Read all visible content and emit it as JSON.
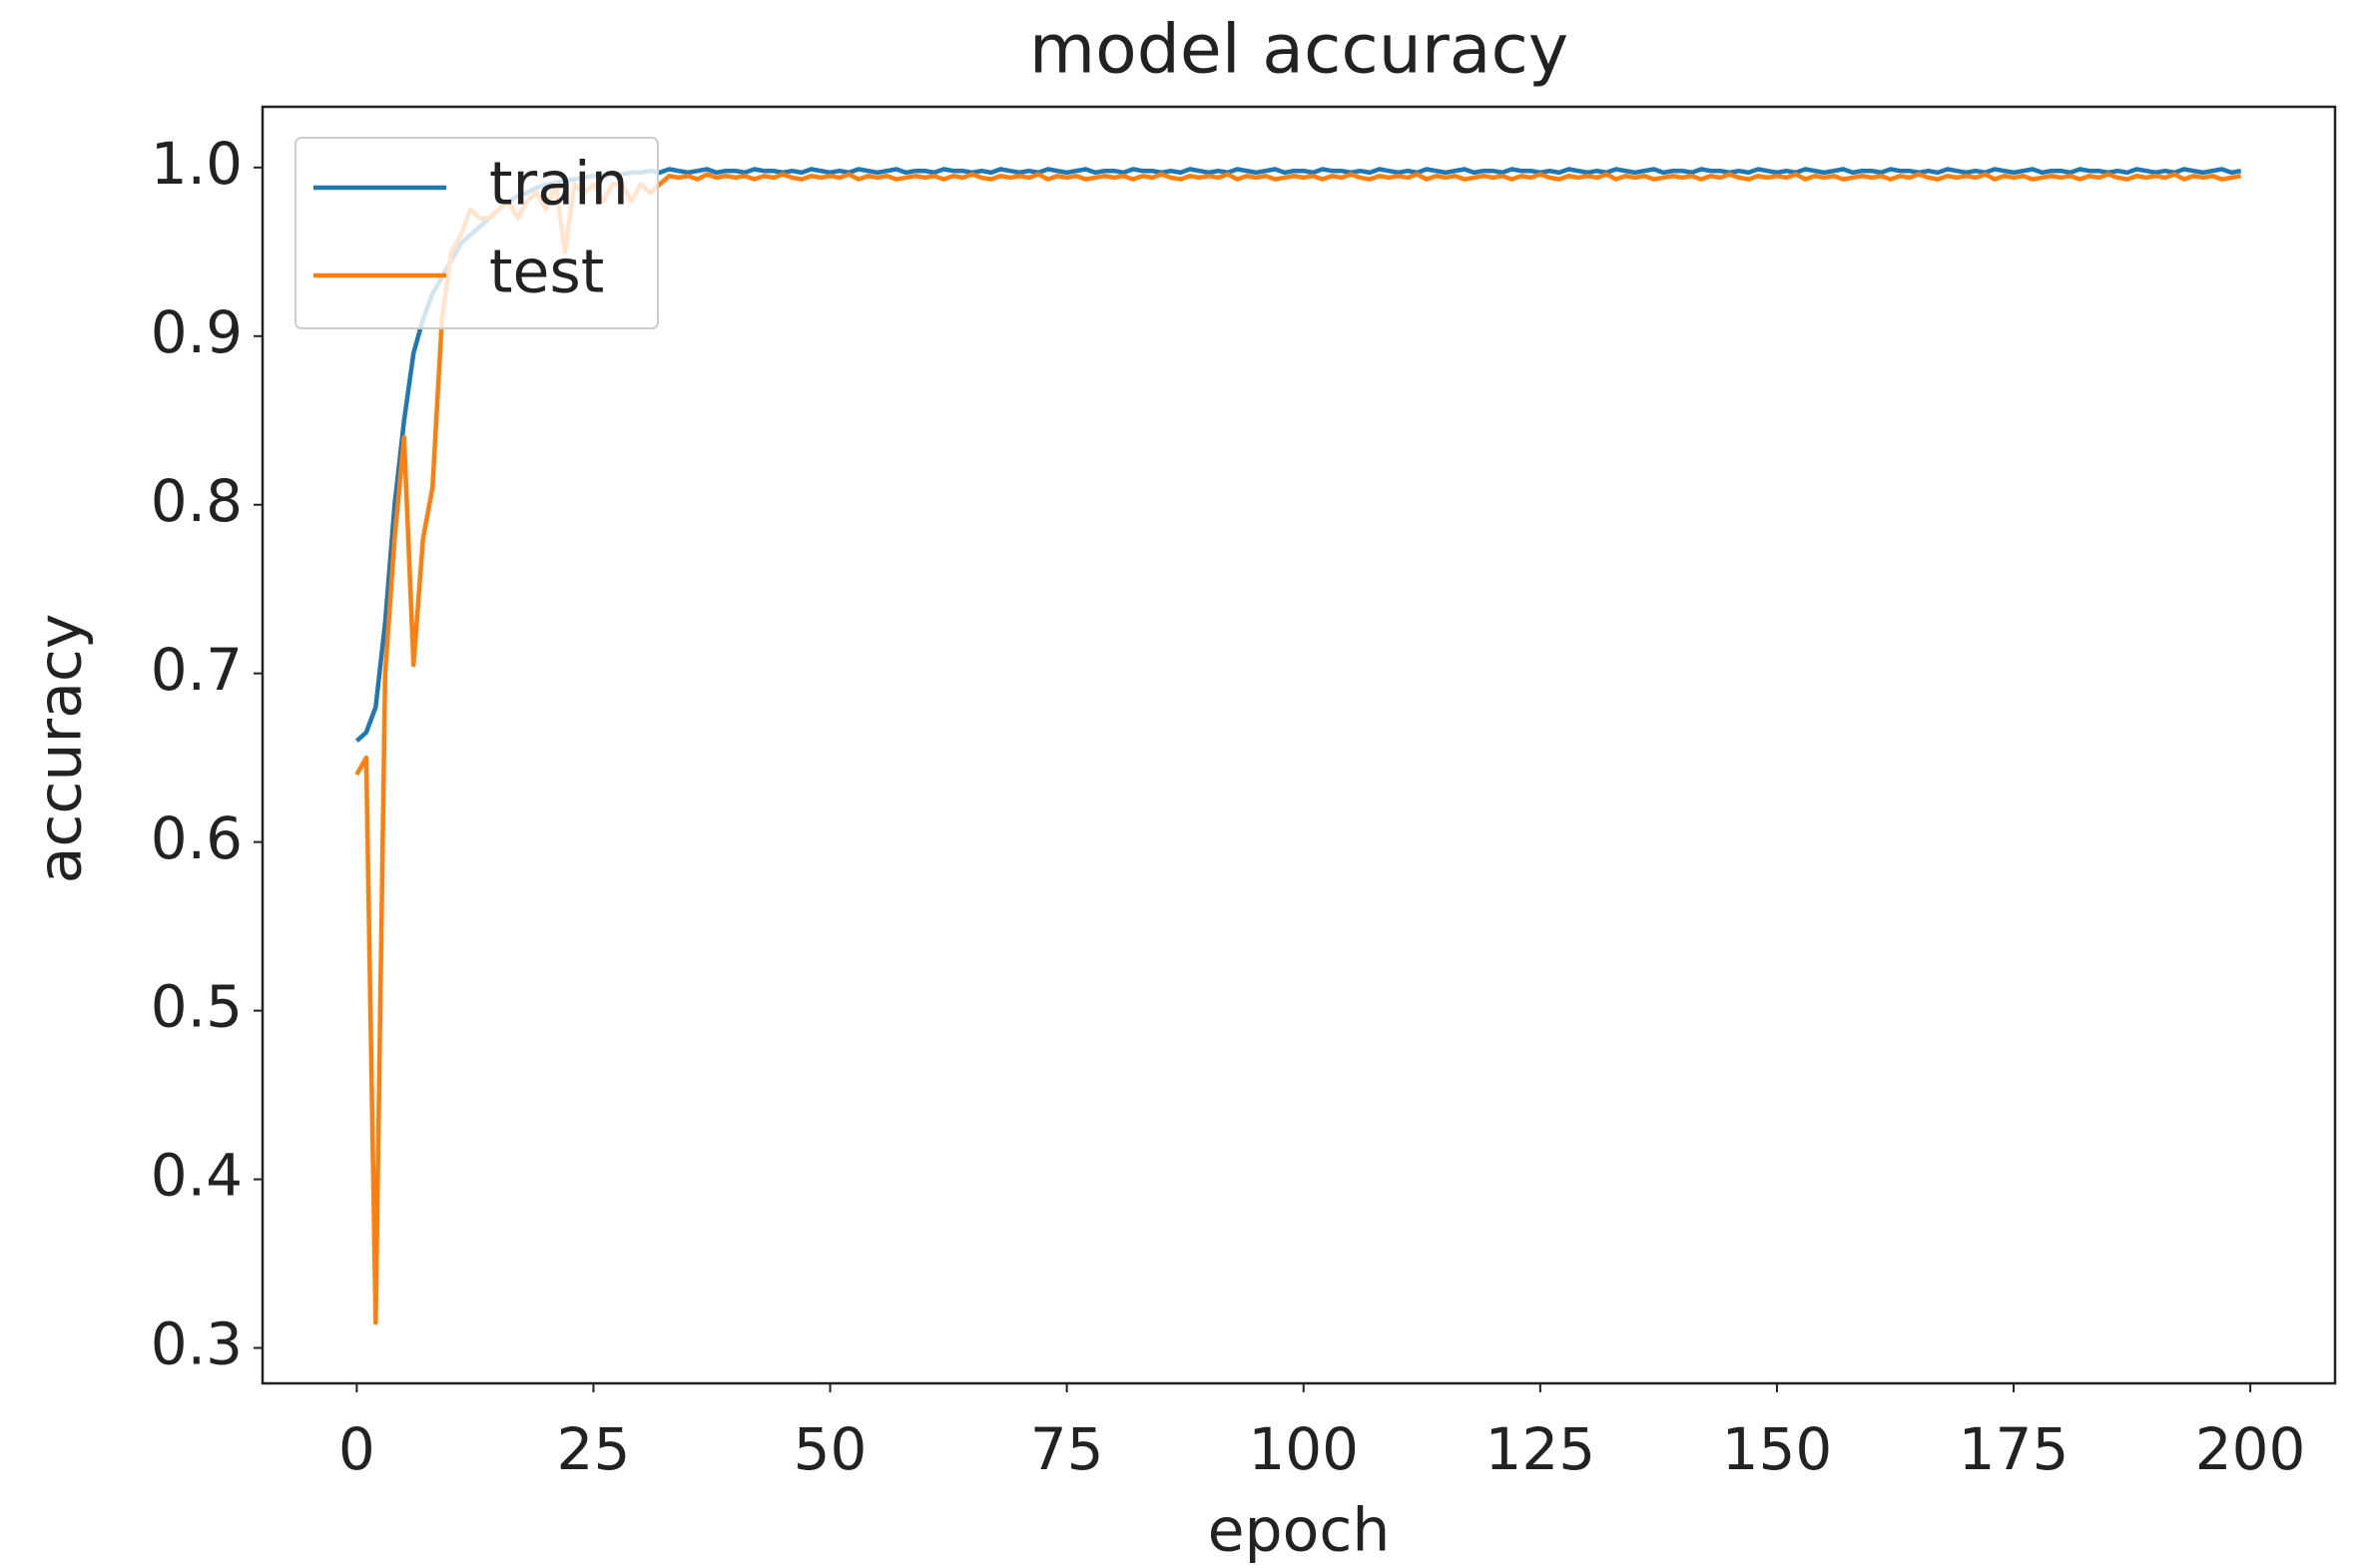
{
  "chart_data": {
    "type": "line",
    "title": "model accuracy",
    "x_label": "epoch",
    "y_label": "accuracy",
    "x": [
      0,
      1,
      2,
      3,
      4,
      5,
      6,
      7,
      8,
      9,
      10,
      11,
      12,
      13,
      14,
      15,
      16,
      17,
      18,
      19,
      20,
      21,
      22,
      23,
      24,
      25,
      26,
      27,
      28,
      29,
      30,
      31,
      32,
      33,
      34,
      35,
      36,
      37,
      38,
      39,
      40,
      41,
      42,
      43,
      44,
      45,
      46,
      47,
      48,
      49,
      50,
      51,
      52,
      53,
      54,
      55,
      56,
      57,
      58,
      59,
      60,
      61,
      62,
      63,
      64,
      65,
      66,
      67,
      68,
      69,
      70,
      71,
      72,
      73,
      74,
      75,
      76,
      77,
      78,
      79,
      80,
      81,
      82,
      83,
      84,
      85,
      86,
      87,
      88,
      89,
      90,
      91,
      92,
      93,
      94,
      95,
      96,
      97,
      98,
      99,
      100,
      101,
      102,
      103,
      104,
      105,
      106,
      107,
      108,
      109,
      110,
      111,
      112,
      113,
      114,
      115,
      116,
      117,
      118,
      119,
      120,
      121,
      122,
      123,
      124,
      125,
      126,
      127,
      128,
      129,
      130,
      131,
      132,
      133,
      134,
      135,
      136,
      137,
      138,
      139,
      140,
      141,
      142,
      143,
      144,
      145,
      146,
      147,
      148,
      149,
      150,
      151,
      152,
      153,
      154,
      155,
      156,
      157,
      158,
      159,
      160,
      161,
      162,
      163,
      164,
      165,
      166,
      167,
      168,
      169,
      170,
      171,
      172,
      173,
      174,
      175,
      176,
      177,
      178,
      179,
      180,
      181,
      182,
      183,
      184,
      185,
      186,
      187,
      188,
      189,
      190,
      191,
      192,
      193,
      194,
      195,
      196,
      197,
      198,
      199
    ],
    "series": [
      {
        "name": "train",
        "color": "#1f77b4",
        "values": [
          0.66,
          0.665,
          0.68,
          0.73,
          0.8,
          0.85,
          0.89,
          0.91,
          0.925,
          0.935,
          0.945,
          0.955,
          0.96,
          0.965,
          0.97,
          0.975,
          0.98,
          0.983,
          0.985,
          0.988,
          0.99,
          0.991,
          0.992,
          0.993,
          0.994,
          0.995,
          0.995,
          0.996,
          0.996,
          0.997,
          0.997,
          0.998,
          0.997,
          0.999,
          0.998,
          0.997,
          0.998,
          0.999,
          0.997,
          0.998,
          0.998,
          0.997,
          0.999,
          0.998,
          0.998,
          0.997,
          0.998,
          0.997,
          0.999,
          0.998,
          0.997,
          0.998,
          0.997,
          0.999,
          0.998,
          0.997,
          0.998,
          0.999,
          0.997,
          0.998,
          0.998,
          0.997,
          0.999,
          0.998,
          0.998,
          0.997,
          0.998,
          0.997,
          0.999,
          0.998,
          0.997,
          0.998,
          0.997,
          0.999,
          0.998,
          0.997,
          0.998,
          0.999,
          0.997,
          0.998,
          0.998,
          0.997,
          0.999,
          0.998,
          0.998,
          0.997,
          0.998,
          0.997,
          0.999,
          0.998,
          0.997,
          0.998,
          0.997,
          0.999,
          0.998,
          0.997,
          0.998,
          0.999,
          0.997,
          0.998,
          0.998,
          0.997,
          0.999,
          0.998,
          0.998,
          0.997,
          0.998,
          0.997,
          0.999,
          0.998,
          0.997,
          0.998,
          0.997,
          0.999,
          0.998,
          0.997,
          0.998,
          0.999,
          0.997,
          0.998,
          0.998,
          0.997,
          0.999,
          0.998,
          0.998,
          0.997,
          0.998,
          0.997,
          0.999,
          0.998,
          0.997,
          0.998,
          0.997,
          0.999,
          0.998,
          0.997,
          0.998,
          0.999,
          0.997,
          0.998,
          0.998,
          0.997,
          0.999,
          0.998,
          0.998,
          0.997,
          0.998,
          0.997,
          0.999,
          0.998,
          0.997,
          0.998,
          0.997,
          0.999,
          0.998,
          0.997,
          0.998,
          0.999,
          0.997,
          0.998,
          0.998,
          0.997,
          0.999,
          0.998,
          0.998,
          0.997,
          0.998,
          0.997,
          0.999,
          0.998,
          0.997,
          0.998,
          0.997,
          0.999,
          0.998,
          0.997,
          0.998,
          0.999,
          0.997,
          0.998,
          0.998,
          0.997,
          0.999,
          0.998,
          0.998,
          0.997,
          0.998,
          0.997,
          0.999,
          0.998,
          0.997,
          0.998,
          0.997,
          0.999,
          0.998,
          0.997,
          0.998,
          0.999,
          0.997,
          0.998
        ]
      },
      {
        "name": "test",
        "color": "#ff7f0e",
        "values": [
          0.64,
          0.65,
          0.315,
          0.7,
          0.78,
          0.84,
          0.705,
          0.78,
          0.81,
          0.91,
          0.95,
          0.96,
          0.975,
          0.97,
          0.97,
          0.975,
          0.98,
          0.97,
          0.98,
          0.985,
          0.975,
          0.99,
          0.95,
          0.99,
          0.985,
          0.99,
          0.98,
          0.99,
          0.99,
          0.98,
          0.99,
          0.985,
          0.99,
          0.995,
          0.994,
          0.995,
          0.993,
          0.996,
          0.994,
          0.995,
          0.994,
          0.995,
          0.993,
          0.995,
          0.994,
          0.996,
          0.994,
          0.993,
          0.995,
          0.994,
          0.995,
          0.994,
          0.996,
          0.993,
          0.995,
          0.994,
          0.995,
          0.993,
          0.994,
          0.995,
          0.994,
          0.995,
          0.993,
          0.995,
          0.994,
          0.996,
          0.994,
          0.993,
          0.995,
          0.994,
          0.995,
          0.994,
          0.996,
          0.993,
          0.995,
          0.994,
          0.995,
          0.993,
          0.994,
          0.995,
          0.994,
          0.995,
          0.993,
          0.995,
          0.994,
          0.996,
          0.994,
          0.993,
          0.995,
          0.994,
          0.995,
          0.994,
          0.996,
          0.993,
          0.995,
          0.994,
          0.995,
          0.993,
          0.994,
          0.995,
          0.994,
          0.995,
          0.993,
          0.995,
          0.994,
          0.996,
          0.994,
          0.993,
          0.995,
          0.994,
          0.995,
          0.994,
          0.996,
          0.993,
          0.995,
          0.994,
          0.995,
          0.993,
          0.994,
          0.995,
          0.994,
          0.995,
          0.993,
          0.995,
          0.994,
          0.996,
          0.994,
          0.993,
          0.995,
          0.994,
          0.995,
          0.994,
          0.996,
          0.993,
          0.995,
          0.994,
          0.995,
          0.993,
          0.994,
          0.995,
          0.994,
          0.995,
          0.993,
          0.995,
          0.994,
          0.996,
          0.994,
          0.993,
          0.995,
          0.994,
          0.995,
          0.994,
          0.996,
          0.993,
          0.995,
          0.994,
          0.995,
          0.993,
          0.994,
          0.995,
          0.994,
          0.995,
          0.993,
          0.995,
          0.994,
          0.996,
          0.994,
          0.993,
          0.995,
          0.994,
          0.995,
          0.994,
          0.996,
          0.993,
          0.995,
          0.994,
          0.995,
          0.993,
          0.994,
          0.995,
          0.994,
          0.995,
          0.993,
          0.995,
          0.994,
          0.996,
          0.994,
          0.993,
          0.995,
          0.994,
          0.995,
          0.994,
          0.996,
          0.993,
          0.995,
          0.994,
          0.995,
          0.993,
          0.994,
          0.995
        ]
      }
    ],
    "xlim": [
      -9.95,
      208.95
    ],
    "ylim": [
      0.279,
      1.036
    ],
    "xticks": [
      0,
      25,
      50,
      75,
      100,
      125,
      150,
      175,
      200
    ],
    "yticks": [
      0.3,
      0.4,
      0.5,
      0.6,
      0.7,
      0.8,
      0.9,
      {
        "value": 1,
        "label": "1.0"
      }
    ],
    "legend": "upper left"
  }
}
